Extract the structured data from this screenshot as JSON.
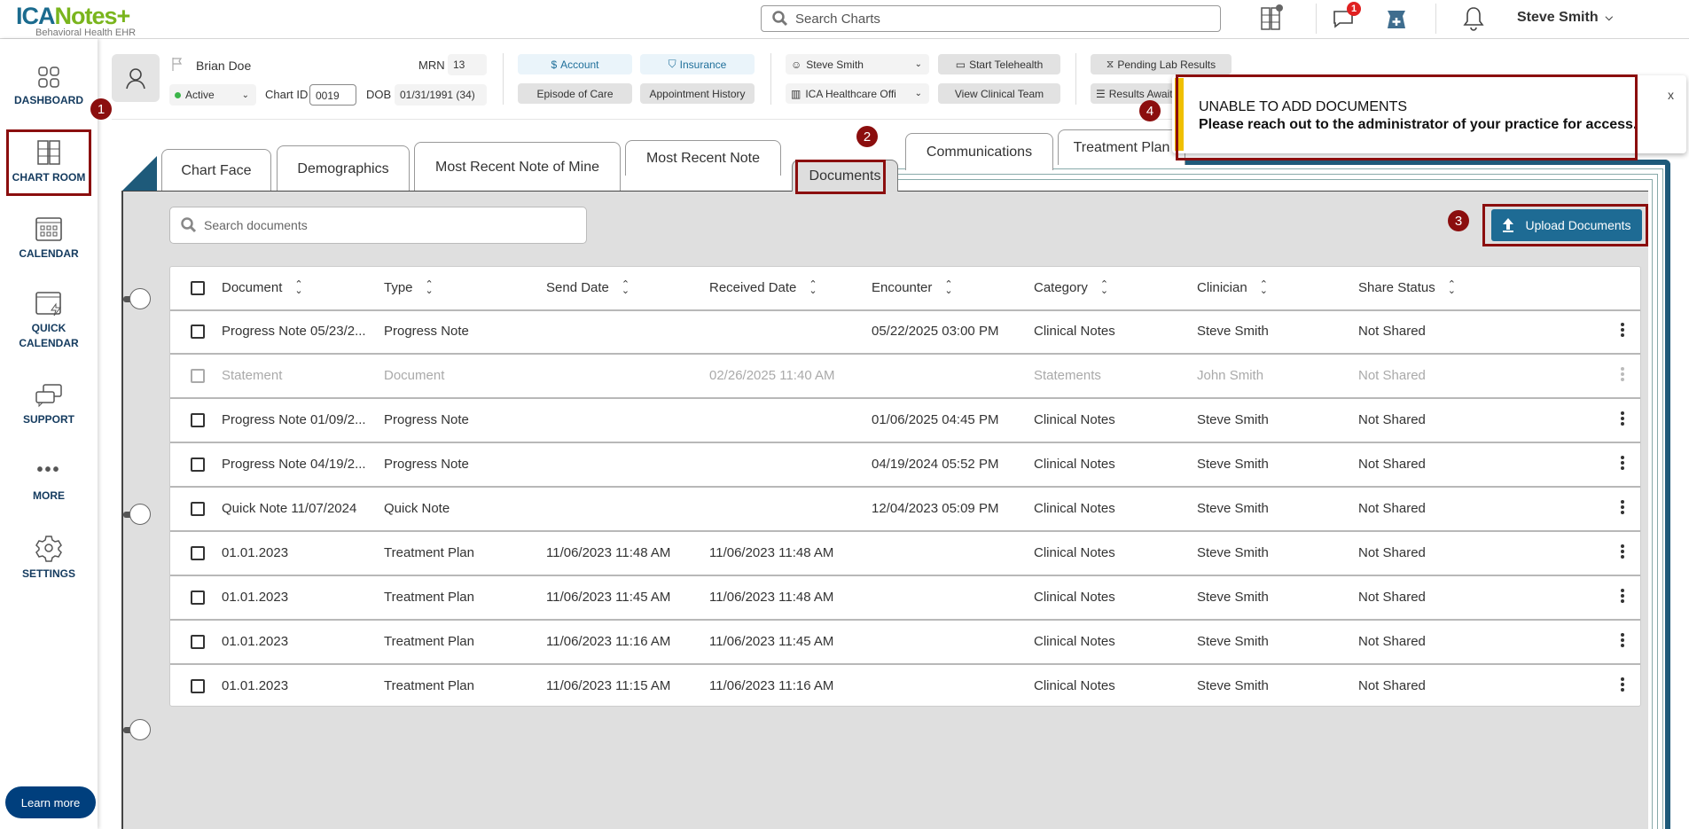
{
  "app": {
    "logo_brand": "ICANotes+",
    "logo_ica": "ICA",
    "logo_notes": "Notes+",
    "logo_tagline": "Behavioral Health EHR"
  },
  "header": {
    "search_placeholder": "Search Charts",
    "messages_badge": "1",
    "user_name": "Steve Smith",
    "icons": [
      "file-cabinet-add-icon",
      "chat-icon",
      "pharmacy-icon",
      "bell-icon",
      "chevron-down-icon"
    ]
  },
  "sidebar": {
    "items": [
      {
        "label": "DASHBOARD",
        "icon": "dashboard-icon"
      },
      {
        "label": "CHART ROOM",
        "icon": "file-cabinet-icon",
        "active": true
      },
      {
        "label": "CALENDAR",
        "icon": "calendar-icon"
      },
      {
        "label": "QUICK",
        "label2": "CALENDAR",
        "icon": "quick-calendar-icon"
      },
      {
        "label": "SUPPORT",
        "icon": "support-icon"
      },
      {
        "label": "MORE",
        "icon": "more-icon"
      },
      {
        "label": "SETTINGS",
        "icon": "gear-icon"
      }
    ],
    "learn_more": "Learn more"
  },
  "patient": {
    "name": "Brian Doe",
    "mrn_label": "MRN",
    "mrn": "13",
    "status": "Active",
    "status_color": "#3cb54a",
    "chart_id_label": "Chart ID",
    "chart_id": "0019",
    "dob_label": "DOB",
    "dob": "01/31/1991 (34)"
  },
  "actions": {
    "account": "Account",
    "insurance": "Insurance",
    "episode": "Episode of Care",
    "appointment_history": "Appointment History",
    "clinician": "Steve Smith",
    "location": "ICA Healthcare Offi",
    "start_telehealth": "Start Telehealth",
    "view_clinical_team": "View Clinical Team",
    "pending_lab": "Pending Lab Results",
    "results_await": "Results Await"
  },
  "toast": {
    "title": "UNABLE TO ADD DOCUMENTS",
    "message": "Please reach out to the administrator of your practice for access.",
    "close": "x",
    "accent": "#f0c000"
  },
  "annotations": [
    "1",
    "2",
    "3",
    "4"
  ],
  "tabs": [
    "Chart Face",
    "Demographics",
    "Most Recent Note of Mine",
    "Most Recent Note",
    "Documents",
    "Communications",
    "Treatment Plan"
  ],
  "active_tab": "Documents",
  "documents": {
    "search_placeholder": "Search documents",
    "upload_label": "Upload Documents",
    "upload_color": "#1e6b94",
    "columns": [
      "Document",
      "Type",
      "Send Date",
      "Received Date",
      "Encounter",
      "Category",
      "Clinician",
      "Share Status"
    ],
    "rows": [
      [
        "Progress Note 05/23/2...",
        "Progress Note",
        "",
        "",
        "05/22/2025 03:00 PM",
        "Clinical Notes",
        "Steve Smith",
        "Not Shared"
      ],
      [
        "Statement",
        "Document",
        "",
        "02/26/2025 11:40 AM",
        "",
        "Statements",
        "John Smith",
        "Not Shared"
      ],
      [
        "Progress Note 01/09/2...",
        "Progress Note",
        "",
        "",
        "01/06/2025 04:45 PM",
        "Clinical Notes",
        "Steve Smith",
        "Not Shared"
      ],
      [
        "Progress Note 04/19/2...",
        "Progress Note",
        "",
        "",
        "04/19/2024 05:52 PM",
        "Clinical Notes",
        "Steve Smith",
        "Not Shared"
      ],
      [
        "Quick Note 11/07/2024",
        "Quick Note",
        "",
        "",
        "12/04/2023 05:09 PM",
        "Clinical Notes",
        "Steve Smith",
        "Not Shared"
      ],
      [
        "01.01.2023",
        "Treatment Plan",
        "11/06/2023 11:48 AM",
        "11/06/2023 11:48 AM",
        "",
        "Clinical Notes",
        "Steve Smith",
        "Not Shared"
      ],
      [
        "01.01.2023",
        "Treatment Plan",
        "11/06/2023 11:45 AM",
        "11/06/2023 11:48 AM",
        "",
        "Clinical Notes",
        "Steve Smith",
        "Not Shared"
      ],
      [
        "01.01.2023",
        "Treatment Plan",
        "11/06/2023 11:16 AM",
        "11/06/2023 11:45 AM",
        "",
        "Clinical Notes",
        "Steve Smith",
        "Not Shared"
      ],
      [
        "01.01.2023",
        "Treatment Plan",
        "11/06/2023 11:15 AM",
        "11/06/2023 11:16 AM",
        "",
        "Clinical Notes",
        "Steve Smith",
        "Not Shared"
      ]
    ],
    "disabled_rows": [
      1
    ]
  }
}
